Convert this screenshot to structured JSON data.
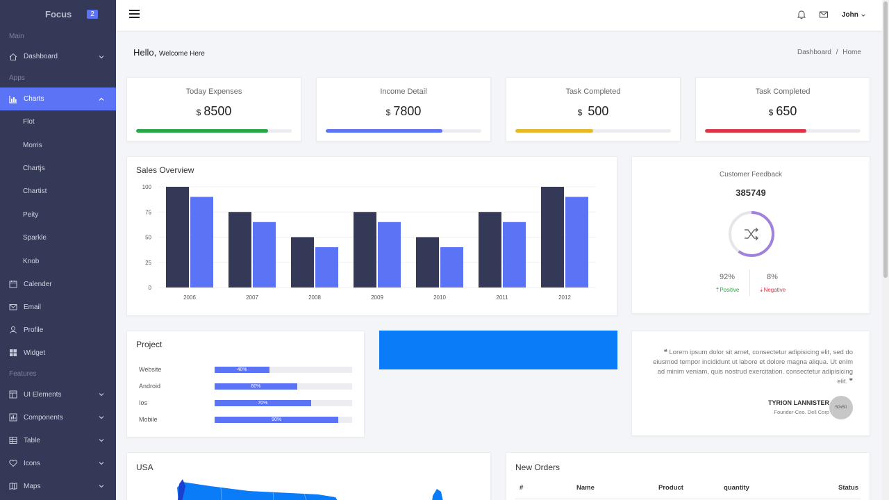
{
  "brand": {
    "name": "Focus",
    "badge": "2"
  },
  "sidebar": {
    "section_main": "Main",
    "section_apps": "Apps",
    "section_features": "Features",
    "dashboard": "Dashboard",
    "charts": "Charts",
    "chart_items": [
      "Flot",
      "Morris",
      "Chartjs",
      "Chartist",
      "Peity",
      "Sparkle",
      "Knob"
    ],
    "calender": "Calender",
    "email": "Email",
    "profile": "Profile",
    "widget": "Widget",
    "ui_elements": "UI Elements",
    "components": "Components",
    "table": "Table",
    "icons": "Icons",
    "maps": "Maps"
  },
  "header": {
    "user": "John"
  },
  "page": {
    "hello": "Hello,",
    "welcome": "Welcome Here",
    "breadcrumb_1": "Dashboard",
    "breadcrumb_sep": "/",
    "breadcrumb_2": "Home"
  },
  "stats": [
    {
      "title": "Today Expenses",
      "currency": "$",
      "value": "8500",
      "progress": 0.85,
      "color": "#28a745"
    },
    {
      "title": "Income Detail",
      "currency": "$",
      "value": "7800",
      "progress": 0.75,
      "color": "#5b74f5"
    },
    {
      "title": "Task Completed",
      "currency": "$",
      "value": "500",
      "progress": 0.5,
      "color": "#e8b72a"
    },
    {
      "title": "Task Completed",
      "currency": "$",
      "value": "650",
      "progress": 0.65,
      "color": "#dc3545"
    }
  ],
  "sales": {
    "title": "Sales Overview"
  },
  "chart_data": {
    "type": "bar",
    "categories": [
      "2006",
      "2007",
      "2008",
      "2009",
      "2010",
      "2011",
      "2012"
    ],
    "series": [
      {
        "values": [
          100,
          75,
          50,
          75,
          50,
          75,
          100
        ],
        "color": "#343957"
      },
      {
        "values": [
          90,
          65,
          40,
          65,
          40,
          65,
          90
        ],
        "color": "#5b74f5"
      }
    ],
    "yticks": [
      "100",
      "75",
      "50",
      "25",
      "0"
    ],
    "ylim": [
      0,
      100
    ],
    "grid": true
  },
  "feedback": {
    "title": "Customer Feedback",
    "value": "385749",
    "positive_pct": "92%",
    "negative_pct": "8%",
    "positive_label": "Positive",
    "negative_label": "Negative",
    "ring_fraction": 0.6
  },
  "project": {
    "title": "Project",
    "items": [
      {
        "label": "Website",
        "pct": "40%",
        "value": 0.4
      },
      {
        "label": "Android",
        "pct": "60%",
        "value": 0.6
      },
      {
        "label": "Ios",
        "pct": "70%",
        "value": 0.7
      },
      {
        "label": "Mobile",
        "pct": "90%",
        "value": 0.9
      }
    ]
  },
  "testimonial": {
    "quote": "Lorem ipsum dolor sit amet, consectetur adipisicing elit, sed do eiusmod tempor incididunt ut labore et dolore magna aliqua. Ut enim ad minim veniam, quis nostrud exercitation. consectetur adipisicing elit.",
    "author": "TYRION LANNISTER",
    "role": "Founder-Ceo. Dell Corp",
    "avatar": "50x50"
  },
  "map": {
    "title": "USA"
  },
  "orders": {
    "title": "New Orders",
    "columns": [
      "#",
      "Name",
      "Product",
      "quantity",
      "Status"
    ]
  }
}
